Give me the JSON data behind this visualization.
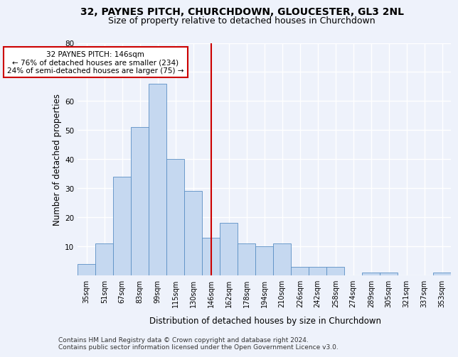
{
  "title1": "32, PAYNES PITCH, CHURCHDOWN, GLOUCESTER, GL3 2NL",
  "title2": "Size of property relative to detached houses in Churchdown",
  "xlabel": "Distribution of detached houses by size in Churchdown",
  "ylabel": "Number of detached properties",
  "footer1": "Contains HM Land Registry data © Crown copyright and database right 2024.",
  "footer2": "Contains public sector information licensed under the Open Government Licence v3.0.",
  "bin_labels": [
    "35sqm",
    "51sqm",
    "67sqm",
    "83sqm",
    "99sqm",
    "115sqm",
    "130sqm",
    "146sqm",
    "162sqm",
    "178sqm",
    "194sqm",
    "210sqm",
    "226sqm",
    "242sqm",
    "258sqm",
    "274sqm",
    "289sqm",
    "305sqm",
    "321sqm",
    "337sqm",
    "353sqm"
  ],
  "bar_values": [
    4,
    11,
    34,
    51,
    66,
    40,
    29,
    13,
    18,
    11,
    10,
    11,
    3,
    3,
    3,
    0,
    1,
    1,
    0,
    0,
    1
  ],
  "highlight_bin_index": 7,
  "bar_color": "#c5d8f0",
  "bar_edge_color": "#5a8fc4",
  "highlight_line_color": "#cc0000",
  "annotation_text": "32 PAYNES PITCH: 146sqm\n← 76% of detached houses are smaller (234)\n24% of semi-detached houses are larger (75) →",
  "annotation_box_color": "white",
  "annotation_box_edge": "#cc0000",
  "ylim": [
    0,
    80
  ],
  "yticks": [
    0,
    10,
    20,
    30,
    40,
    50,
    60,
    70,
    80
  ],
  "bg_color": "#eef2fb",
  "plot_bg_color": "#eef2fb",
  "grid_color": "#ffffff",
  "title1_fontsize": 10,
  "title2_fontsize": 9,
  "axis_label_fontsize": 8.5,
  "tick_fontsize": 7,
  "annotation_fontsize": 7.5,
  "footer_fontsize": 6.5
}
